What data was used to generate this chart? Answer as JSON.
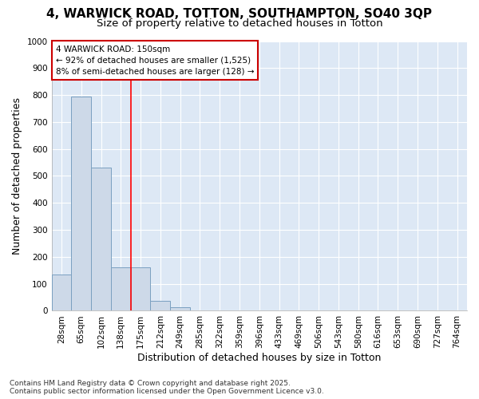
{
  "title_line1": "4, WARWICK ROAD, TOTTON, SOUTHAMPTON, SO40 3QP",
  "title_line2": "Size of property relative to detached houses in Totton",
  "xlabel": "Distribution of detached houses by size in Totton",
  "ylabel": "Number of detached properties",
  "footnote_line1": "Contains HM Land Registry data © Crown copyright and database right 2025.",
  "footnote_line2": "Contains public sector information licensed under the Open Government Licence v3.0.",
  "categories": [
    "28sqm",
    "65sqm",
    "102sqm",
    "138sqm",
    "175sqm",
    "212sqm",
    "249sqm",
    "285sqm",
    "322sqm",
    "359sqm",
    "396sqm",
    "433sqm",
    "469sqm",
    "506sqm",
    "543sqm",
    "580sqm",
    "616sqm",
    "653sqm",
    "690sqm",
    "727sqm",
    "764sqm"
  ],
  "values": [
    135,
    795,
    530,
    160,
    160,
    38,
    12,
    0,
    0,
    0,
    0,
    0,
    0,
    0,
    0,
    0,
    0,
    0,
    0,
    0,
    0
  ],
  "bar_color": "#cdd9e8",
  "bar_edge_color": "#7aa0c0",
  "red_line_x": 3.5,
  "annotation_line1": "4 WARWICK ROAD: 150sqm",
  "annotation_line2": "← 92% of detached houses are smaller (1,525)",
  "annotation_line3": "8% of semi-detached houses are larger (128) →",
  "annotation_box_facecolor": "#ffffff",
  "annotation_box_edgecolor": "#cc0000",
  "ylim": [
    0,
    1000
  ],
  "yticks": [
    0,
    100,
    200,
    300,
    400,
    500,
    600,
    700,
    800,
    900,
    1000
  ],
  "fig_bg_color": "#ffffff",
  "plot_bg_color": "#dde8f5",
  "grid_color": "#ffffff",
  "title_fontsize": 11,
  "subtitle_fontsize": 9.5,
  "axis_label_fontsize": 9,
  "tick_fontsize": 7.5,
  "footnote_fontsize": 6.5
}
